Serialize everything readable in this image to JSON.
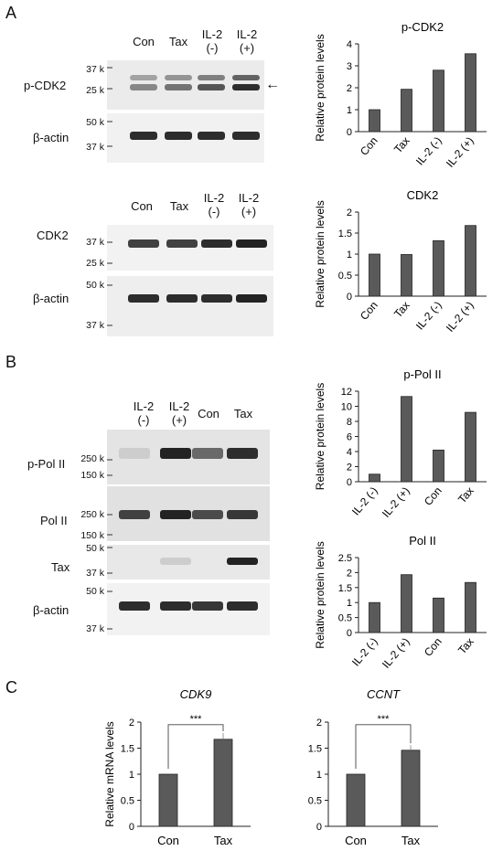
{
  "panels": [
    {
      "letter": "A"
    },
    {
      "letter": "B"
    },
    {
      "letter": "C"
    }
  ],
  "blots": {
    "pcdk2": {
      "lanes": [
        "Con",
        "Tax",
        "IL-2\n(-)",
        "IL-2\n(+)"
      ],
      "protein": "p-CDK2",
      "actin": "β-actin",
      "mw_top": [
        "37 k",
        "25 k"
      ],
      "mw_actin": [
        "50 k",
        "37 k"
      ],
      "arrow": "←",
      "top_intensity": [
        0.45,
        0.55,
        0.7,
        0.9
      ],
      "actin_intensity": [
        0.9,
        0.9,
        0.9,
        0.9
      ]
    },
    "cdk2": {
      "lanes": [
        "Con",
        "Tax",
        "IL-2\n(-)",
        "IL-2\n(+)"
      ],
      "protein": "CDK2",
      "actin": "β-actin",
      "mw_top": [
        "37 k",
        "25 k"
      ],
      "mw_actin": [
        "50 k",
        "37 k"
      ],
      "top_intensity": [
        0.8,
        0.8,
        0.9,
        0.95
      ],
      "actin_intensity": [
        0.9,
        0.9,
        0.9,
        0.95
      ]
    },
    "polii": {
      "lanes": [
        "IL-2\n(-)",
        "IL-2\n(+)",
        "Con",
        "Tax"
      ],
      "protein_p": "p-Pol II",
      "protein": "Pol II",
      "tax": "Tax",
      "actin": "β-actin",
      "mw_p": [
        "250 k",
        "150 k"
      ],
      "mw_pol": [
        "250 k",
        "150 k"
      ],
      "mw_tax": [
        "50 k",
        "37 k"
      ],
      "mw_actin": [
        "50 k",
        "37 k"
      ],
      "p_intensity": [
        0.1,
        0.95,
        0.6,
        0.9
      ],
      "pol_intensity": [
        0.8,
        0.95,
        0.75,
        0.85
      ],
      "tax_intensity": [
        0.0,
        0.1,
        0.0,
        0.95
      ],
      "actin_intensity": [
        0.9,
        0.9,
        0.85,
        0.9
      ]
    }
  },
  "chart_data": [
    {
      "id": "c1",
      "type": "bar",
      "title": "p-CDK2",
      "ylabel": "Relative protein levels",
      "categories": [
        "Con",
        "Tax",
        "IL-2 (-)",
        "IL-2 (+)"
      ],
      "values": [
        1,
        1.93,
        2.8,
        3.55
      ],
      "ylim": [
        0,
        4
      ],
      "ticks": [
        "0",
        "1",
        "2",
        "3",
        "4"
      ],
      "tickvals": [
        0,
        1,
        2,
        3,
        4
      ],
      "rotate": true
    },
    {
      "id": "c2",
      "type": "bar",
      "title": "CDK2",
      "ylabel": "Relative protein levels",
      "categories": [
        "Con",
        "Tax",
        "IL-2 (-)",
        "IL-2 (+)"
      ],
      "values": [
        1,
        0.99,
        1.32,
        1.68
      ],
      "ylim": [
        0,
        2
      ],
      "ticks": [
        "0",
        "0.5",
        "1",
        "1.5",
        "2"
      ],
      "tickvals": [
        0,
        0.5,
        1,
        1.5,
        2
      ],
      "rotate": true
    },
    {
      "id": "c3",
      "type": "bar",
      "title": "p-Pol II",
      "ylabel": "Relative protein levels",
      "categories": [
        "IL-2 (-)",
        "IL-2 (+)",
        "Con",
        "Tax"
      ],
      "values": [
        1,
        11.3,
        4.2,
        9.2
      ],
      "ylim": [
        0,
        12
      ],
      "ticks": [
        "0",
        "2",
        "4",
        "6",
        "8",
        "10",
        "12"
      ],
      "tickvals": [
        0,
        2,
        4,
        6,
        8,
        10,
        12
      ],
      "rotate": true
    },
    {
      "id": "c4",
      "type": "bar",
      "title": "Pol II",
      "ylabel": "Relative protein levels",
      "categories": [
        "IL-2 (-)",
        "IL-2 (+)",
        "Con",
        "Tax"
      ],
      "values": [
        1,
        1.93,
        1.15,
        1.67
      ],
      "ylim": [
        0,
        2.5
      ],
      "ticks": [
        "0",
        "0.5",
        "1",
        "1.5",
        "2",
        "2.5"
      ],
      "tickvals": [
        0,
        0.5,
        1,
        1.5,
        2,
        2.5
      ],
      "rotate": true
    },
    {
      "id": "c5",
      "type": "bar",
      "title": "CDK9",
      "ylabel": "Relative mRNA levels",
      "categories": [
        "Con",
        "Tax"
      ],
      "values": [
        1,
        1.67
      ],
      "errors": [
        0,
        0.12
      ],
      "ylim": [
        0,
        2
      ],
      "ticks": [
        "0",
        "0.5",
        "1",
        "1.5",
        "2"
      ],
      "tickvals": [
        0,
        0.5,
        1,
        1.5,
        2
      ],
      "rotate": false,
      "sig": "***",
      "italic_title": true
    },
    {
      "id": "c6",
      "type": "bar",
      "title": "CCNT",
      "ylabel": "",
      "categories": [
        "Con",
        "Tax"
      ],
      "values": [
        1,
        1.46
      ],
      "errors": [
        0,
        0.1
      ],
      "ylim": [
        0,
        2
      ],
      "ticks": [
        "0",
        "0.5",
        "1",
        "1.5",
        "2"
      ],
      "tickvals": [
        0,
        0.5,
        1,
        1.5,
        2
      ],
      "rotate": false,
      "sig": "***",
      "italic_title": true
    }
  ]
}
